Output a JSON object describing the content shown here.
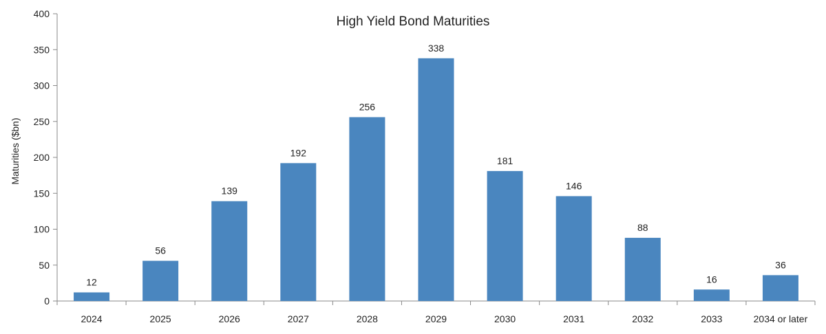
{
  "chart_data": {
    "type": "bar",
    "title": "High Yield Bond Maturities",
    "xlabel": "",
    "ylabel": "Maturities ($bn)",
    "ylim": [
      0,
      400
    ],
    "yticks": [
      "0",
      "50",
      "100",
      "150",
      "200",
      "250",
      "300",
      "350",
      "400"
    ],
    "categories": [
      "2024",
      "2025",
      "2026",
      "2027",
      "2028",
      "2029",
      "2030",
      "2031",
      "2032",
      "2033",
      "2034 or later"
    ],
    "values": [
      12,
      56,
      139,
      192,
      256,
      338,
      181,
      146,
      88,
      16,
      36
    ],
    "data_labels": [
      "12",
      "56",
      "139",
      "192",
      "256",
      "338",
      "181",
      "146",
      "88",
      "16",
      "36"
    ],
    "bar_color": "#4a86bf",
    "axis_color": "#888888",
    "grid": false,
    "legend": "none"
  }
}
